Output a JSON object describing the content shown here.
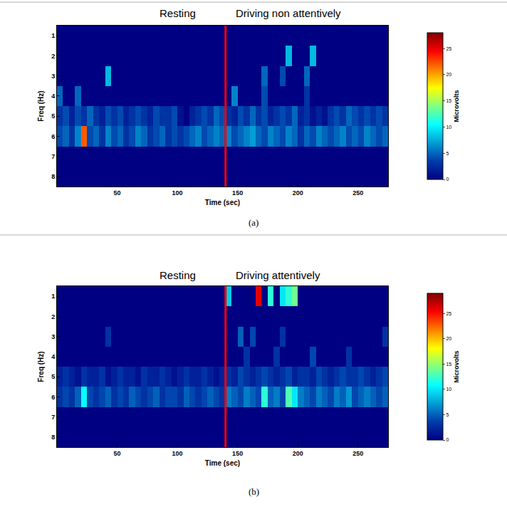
{
  "chart_data": [
    {
      "type": "heatmap",
      "panel_label": "(a)",
      "annotations": [
        "Resting",
        "Driving non attentively"
      ],
      "x_label": "Time (sec)",
      "y_label": "Freq (Hz)",
      "colorbar_label": "Microvolts",
      "divider_x": 140,
      "x": [
        2.5,
        7.5,
        12.5,
        17.5,
        22.5,
        27.5,
        32.5,
        37.5,
        42.5,
        47.5,
        52.5,
        57.5,
        62.5,
        67.5,
        72.5,
        77.5,
        82.5,
        87.5,
        92.5,
        97.5,
        102.5,
        107.5,
        112.5,
        117.5,
        122.5,
        127.5,
        132.5,
        137.5,
        142.5,
        147.5,
        152.5,
        157.5,
        162.5,
        167.5,
        172.5,
        177.5,
        182.5,
        187.5,
        192.5,
        197.5,
        202.5,
        207.5,
        212.5,
        217.5,
        222.5,
        227.5,
        232.5,
        237.5,
        242.5,
        247.5,
        252.5,
        257.5,
        262.5,
        267.5,
        272.5
      ],
      "y": [
        1,
        2,
        3,
        4,
        5,
        6,
        7,
        8
      ],
      "z": [
        [
          0,
          0,
          0,
          0,
          0,
          0,
          0,
          0,
          0,
          0,
          0,
          0,
          0,
          0,
          0,
          0,
          0,
          0,
          0,
          0,
          0,
          0,
          0,
          0,
          0,
          0,
          0,
          0,
          0,
          0,
          0,
          0,
          0,
          0,
          0,
          0,
          0,
          0,
          0,
          0,
          0,
          0,
          0,
          0,
          0,
          0,
          0,
          0,
          0,
          0,
          0,
          0,
          0,
          0,
          0
        ],
        [
          0,
          0,
          0,
          0,
          0,
          0,
          0,
          0,
          0,
          0,
          0,
          0,
          0,
          0,
          0,
          0,
          0,
          0,
          0,
          0,
          0,
          0,
          0,
          0,
          0,
          0,
          0,
          0,
          0,
          0,
          0,
          0,
          0,
          0,
          0,
          0,
          0,
          0,
          8,
          0,
          0,
          0,
          8,
          0,
          0,
          0,
          0,
          0,
          0,
          0,
          0,
          0,
          0,
          0,
          0
        ],
        [
          0,
          0,
          0,
          0,
          0,
          0,
          0,
          0,
          8,
          0,
          0,
          0,
          0,
          0,
          0,
          0,
          0,
          0,
          0,
          0,
          0,
          0,
          0,
          0,
          0,
          0,
          0,
          0,
          0,
          0,
          0,
          0,
          0,
          0,
          5,
          0,
          0,
          4,
          0,
          0,
          0,
          5,
          0,
          0,
          0,
          0,
          0,
          0,
          0,
          0,
          0,
          0,
          0,
          0,
          0
        ],
        [
          5,
          0,
          0,
          5,
          0,
          0,
          0,
          0,
          0,
          0,
          0,
          0,
          0,
          0,
          0,
          0,
          0,
          0,
          0,
          0,
          0,
          0,
          0,
          0,
          0,
          0,
          0,
          0,
          0,
          6,
          0,
          0,
          0,
          0,
          4,
          0,
          0,
          0,
          0,
          0,
          0,
          3,
          0,
          0,
          0,
          0,
          0,
          0,
          0,
          0,
          0,
          0,
          0,
          0,
          0
        ],
        [
          3,
          4,
          2,
          4,
          3,
          5,
          3,
          2,
          4,
          3,
          4,
          2,
          3,
          4,
          3,
          2,
          4,
          3,
          3,
          4,
          1,
          0,
          2,
          3,
          4,
          3,
          5,
          4,
          3,
          2,
          4,
          3,
          5,
          3,
          4,
          2,
          3,
          4,
          3,
          5,
          2,
          3,
          1,
          2,
          1,
          3,
          4,
          3,
          5,
          4,
          3,
          4,
          3,
          4,
          3
        ],
        [
          4,
          5,
          3,
          6,
          22,
          4,
          5,
          3,
          6,
          4,
          5,
          3,
          4,
          6,
          5,
          3,
          4,
          5,
          3,
          4,
          3,
          4,
          5,
          6,
          4,
          5,
          6,
          5,
          6,
          4,
          5,
          6,
          7,
          5,
          4,
          6,
          5,
          4,
          6,
          5,
          3,
          5,
          4,
          6,
          5,
          4,
          5,
          6,
          4,
          5,
          4,
          6,
          5,
          4,
          5
        ],
        [
          0,
          0,
          0,
          0,
          0,
          0,
          0,
          0,
          0,
          0,
          0,
          0,
          0,
          0,
          0,
          0,
          0,
          0,
          0,
          0,
          0,
          0,
          0,
          0,
          0,
          0,
          0,
          0,
          0,
          0,
          0,
          0,
          0,
          0,
          0,
          0,
          0,
          0,
          0,
          0,
          0,
          0,
          0,
          0,
          0,
          0,
          0,
          0,
          0,
          0,
          0,
          0,
          0,
          0,
          0
        ],
        [
          0,
          0,
          0,
          0,
          0,
          0,
          0,
          0,
          0,
          0,
          0,
          0,
          0,
          0,
          0,
          0,
          0,
          0,
          0,
          0,
          0,
          0,
          0,
          0,
          0,
          0,
          0,
          0,
          0,
          0,
          0,
          0,
          0,
          0,
          0,
          0,
          0,
          0,
          0,
          0,
          0,
          0,
          0,
          0,
          0,
          0,
          0,
          0,
          0,
          0,
          0,
          0,
          0,
          0,
          0
        ]
      ],
      "xlim": [
        0,
        275
      ],
      "xticks": [
        50,
        100,
        150,
        200,
        250
      ],
      "ylim": [
        8.5,
        0.5
      ],
      "yticks": [
        1,
        2,
        3,
        4,
        5,
        6,
        7,
        8
      ],
      "colorbar_range": [
        0,
        28
      ],
      "colorbar_ticks": [
        0,
        5,
        10,
        15,
        20,
        25
      ]
    },
    {
      "type": "heatmap",
      "panel_label": "(b)",
      "annotations": [
        "Resting",
        "Driving attentively"
      ],
      "x_label": "Time (sec)",
      "y_label": "Freq (Hz)",
      "colorbar_label": "Microvolts",
      "divider_x": 140,
      "x": [
        2.5,
        7.5,
        12.5,
        17.5,
        22.5,
        27.5,
        32.5,
        37.5,
        42.5,
        47.5,
        52.5,
        57.5,
        62.5,
        67.5,
        72.5,
        77.5,
        82.5,
        87.5,
        92.5,
        97.5,
        102.5,
        107.5,
        112.5,
        117.5,
        122.5,
        127.5,
        132.5,
        137.5,
        142.5,
        147.5,
        152.5,
        157.5,
        162.5,
        167.5,
        172.5,
        177.5,
        182.5,
        187.5,
        192.5,
        197.5,
        202.5,
        207.5,
        212.5,
        217.5,
        222.5,
        227.5,
        232.5,
        237.5,
        242.5,
        247.5,
        252.5,
        257.5,
        262.5,
        267.5,
        272.5
      ],
      "y": [
        1,
        2,
        3,
        4,
        5,
        6,
        7,
        8
      ],
      "z": [
        [
          0,
          0,
          0,
          0,
          0,
          0,
          0,
          0,
          0,
          0,
          0,
          0,
          0,
          0,
          0,
          0,
          0,
          0,
          0,
          0,
          0,
          0,
          0,
          0,
          0,
          0,
          0,
          0,
          9,
          0,
          0,
          0,
          0,
          26,
          0,
          12,
          0,
          10,
          12,
          14,
          0,
          0,
          0,
          0,
          0,
          0,
          0,
          0,
          0,
          0,
          0,
          0,
          0,
          0,
          0
        ],
        [
          0,
          0,
          0,
          0,
          0,
          0,
          0,
          0,
          0,
          0,
          0,
          0,
          0,
          0,
          0,
          0,
          0,
          0,
          0,
          0,
          0,
          0,
          0,
          0,
          0,
          0,
          0,
          0,
          0,
          0,
          0,
          0,
          0,
          0,
          0,
          0,
          0,
          0,
          0,
          0,
          0,
          0,
          0,
          0,
          0,
          0,
          0,
          0,
          0,
          0,
          0,
          0,
          0,
          0,
          0
        ],
        [
          0,
          0,
          0,
          0,
          0,
          0,
          0,
          0,
          3,
          0,
          0,
          0,
          0,
          0,
          0,
          0,
          0,
          0,
          0,
          0,
          0,
          0,
          0,
          0,
          0,
          0,
          0,
          0,
          0,
          0,
          5,
          0,
          4,
          0,
          0,
          0,
          0,
          3,
          0,
          0,
          0,
          0,
          0,
          0,
          0,
          0,
          0,
          0,
          0,
          0,
          0,
          0,
          0,
          0,
          3
        ],
        [
          0,
          0,
          0,
          0,
          0,
          0,
          0,
          0,
          0,
          0,
          0,
          0,
          0,
          0,
          0,
          0,
          0,
          0,
          0,
          0,
          0,
          0,
          0,
          0,
          0,
          0,
          0,
          0,
          0,
          0,
          0,
          3,
          0,
          0,
          0,
          0,
          3,
          0,
          0,
          0,
          0,
          0,
          4,
          0,
          0,
          0,
          0,
          0,
          3,
          0,
          0,
          0,
          0,
          0,
          0
        ],
        [
          2,
          3,
          2,
          1,
          3,
          2,
          2,
          3,
          1,
          2,
          3,
          2,
          2,
          1,
          3,
          2,
          2,
          3,
          2,
          1,
          2,
          3,
          2,
          2,
          3,
          2,
          1,
          2,
          3,
          2,
          4,
          3,
          2,
          3,
          4,
          3,
          2,
          3,
          4,
          2,
          3,
          3,
          2,
          4,
          3,
          2,
          3,
          4,
          3,
          3,
          4,
          3,
          2,
          3,
          4
        ],
        [
          3,
          4,
          3,
          5,
          11,
          4,
          3,
          4,
          5,
          3,
          4,
          3,
          5,
          4,
          3,
          4,
          5,
          3,
          4,
          4,
          3,
          5,
          4,
          3,
          4,
          5,
          4,
          3,
          6,
          5,
          4,
          6,
          5,
          4,
          12,
          5,
          6,
          4,
          13,
          10,
          6,
          5,
          4,
          6,
          5,
          4,
          6,
          5,
          7,
          4,
          5,
          6,
          5,
          4,
          5
        ],
        [
          0,
          0,
          0,
          0,
          0,
          0,
          0,
          0,
          0,
          0,
          0,
          0,
          0,
          0,
          0,
          0,
          0,
          0,
          0,
          0,
          0,
          0,
          0,
          0,
          0,
          0,
          0,
          0,
          0,
          0,
          0,
          0,
          0,
          0,
          0,
          0,
          0,
          0,
          0,
          0,
          0,
          0,
          0,
          0,
          0,
          0,
          0,
          0,
          0,
          0,
          0,
          0,
          0,
          0,
          0
        ],
        [
          0,
          0,
          0,
          0,
          0,
          0,
          0,
          0,
          0,
          0,
          0,
          0,
          0,
          0,
          0,
          0,
          0,
          0,
          0,
          0,
          0,
          0,
          0,
          0,
          0,
          0,
          0,
          0,
          0,
          0,
          0,
          0,
          0,
          0,
          0,
          0,
          0,
          0,
          0,
          0,
          0,
          0,
          0,
          0,
          0,
          0,
          0,
          0,
          0,
          0,
          0,
          0,
          0,
          0,
          0
        ]
      ],
      "xlim": [
        0,
        275
      ],
      "xticks": [
        50,
        100,
        150,
        200,
        250
      ],
      "ylim": [
        8.5,
        0.5
      ],
      "yticks": [
        1,
        2,
        3,
        4,
        5,
        6,
        7,
        8
      ],
      "colorbar_range": [
        0,
        29
      ],
      "colorbar_ticks": [
        0,
        5,
        10,
        15,
        20,
        25
      ]
    }
  ]
}
